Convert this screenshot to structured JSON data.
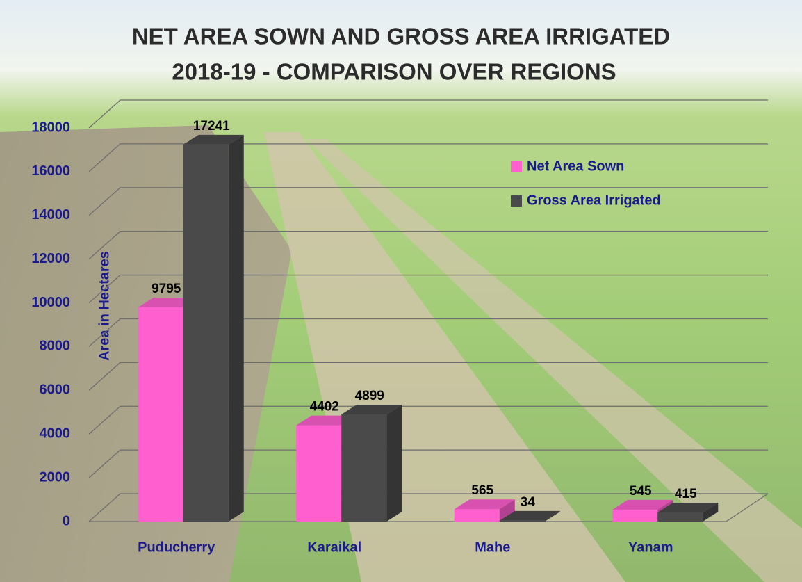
{
  "chart_data": {
    "type": "bar3d",
    "title": [
      "NET AREA SOWN AND GROSS AREA IRRIGATED",
      "2018-19 - COMPARISON OVER REGIONS"
    ],
    "y_label": "Area in Hectares",
    "categories": [
      "Puducherry",
      "Karaikal",
      "Mahe",
      "Yanam"
    ],
    "series": [
      {
        "name": "Net Area Sown",
        "color": "#ff5fcf",
        "values": [
          9795,
          4402,
          565,
          545
        ]
      },
      {
        "name": "Gross Area Irrigated",
        "color": "#4a4a4a",
        "values": [
          17241,
          4899,
          34,
          415
        ]
      }
    ],
    "ylim": [
      0,
      18000
    ],
    "yticks": [
      0,
      2000,
      4000,
      6000,
      8000,
      10000,
      12000,
      14000,
      16000,
      18000
    ],
    "grid": true
  }
}
